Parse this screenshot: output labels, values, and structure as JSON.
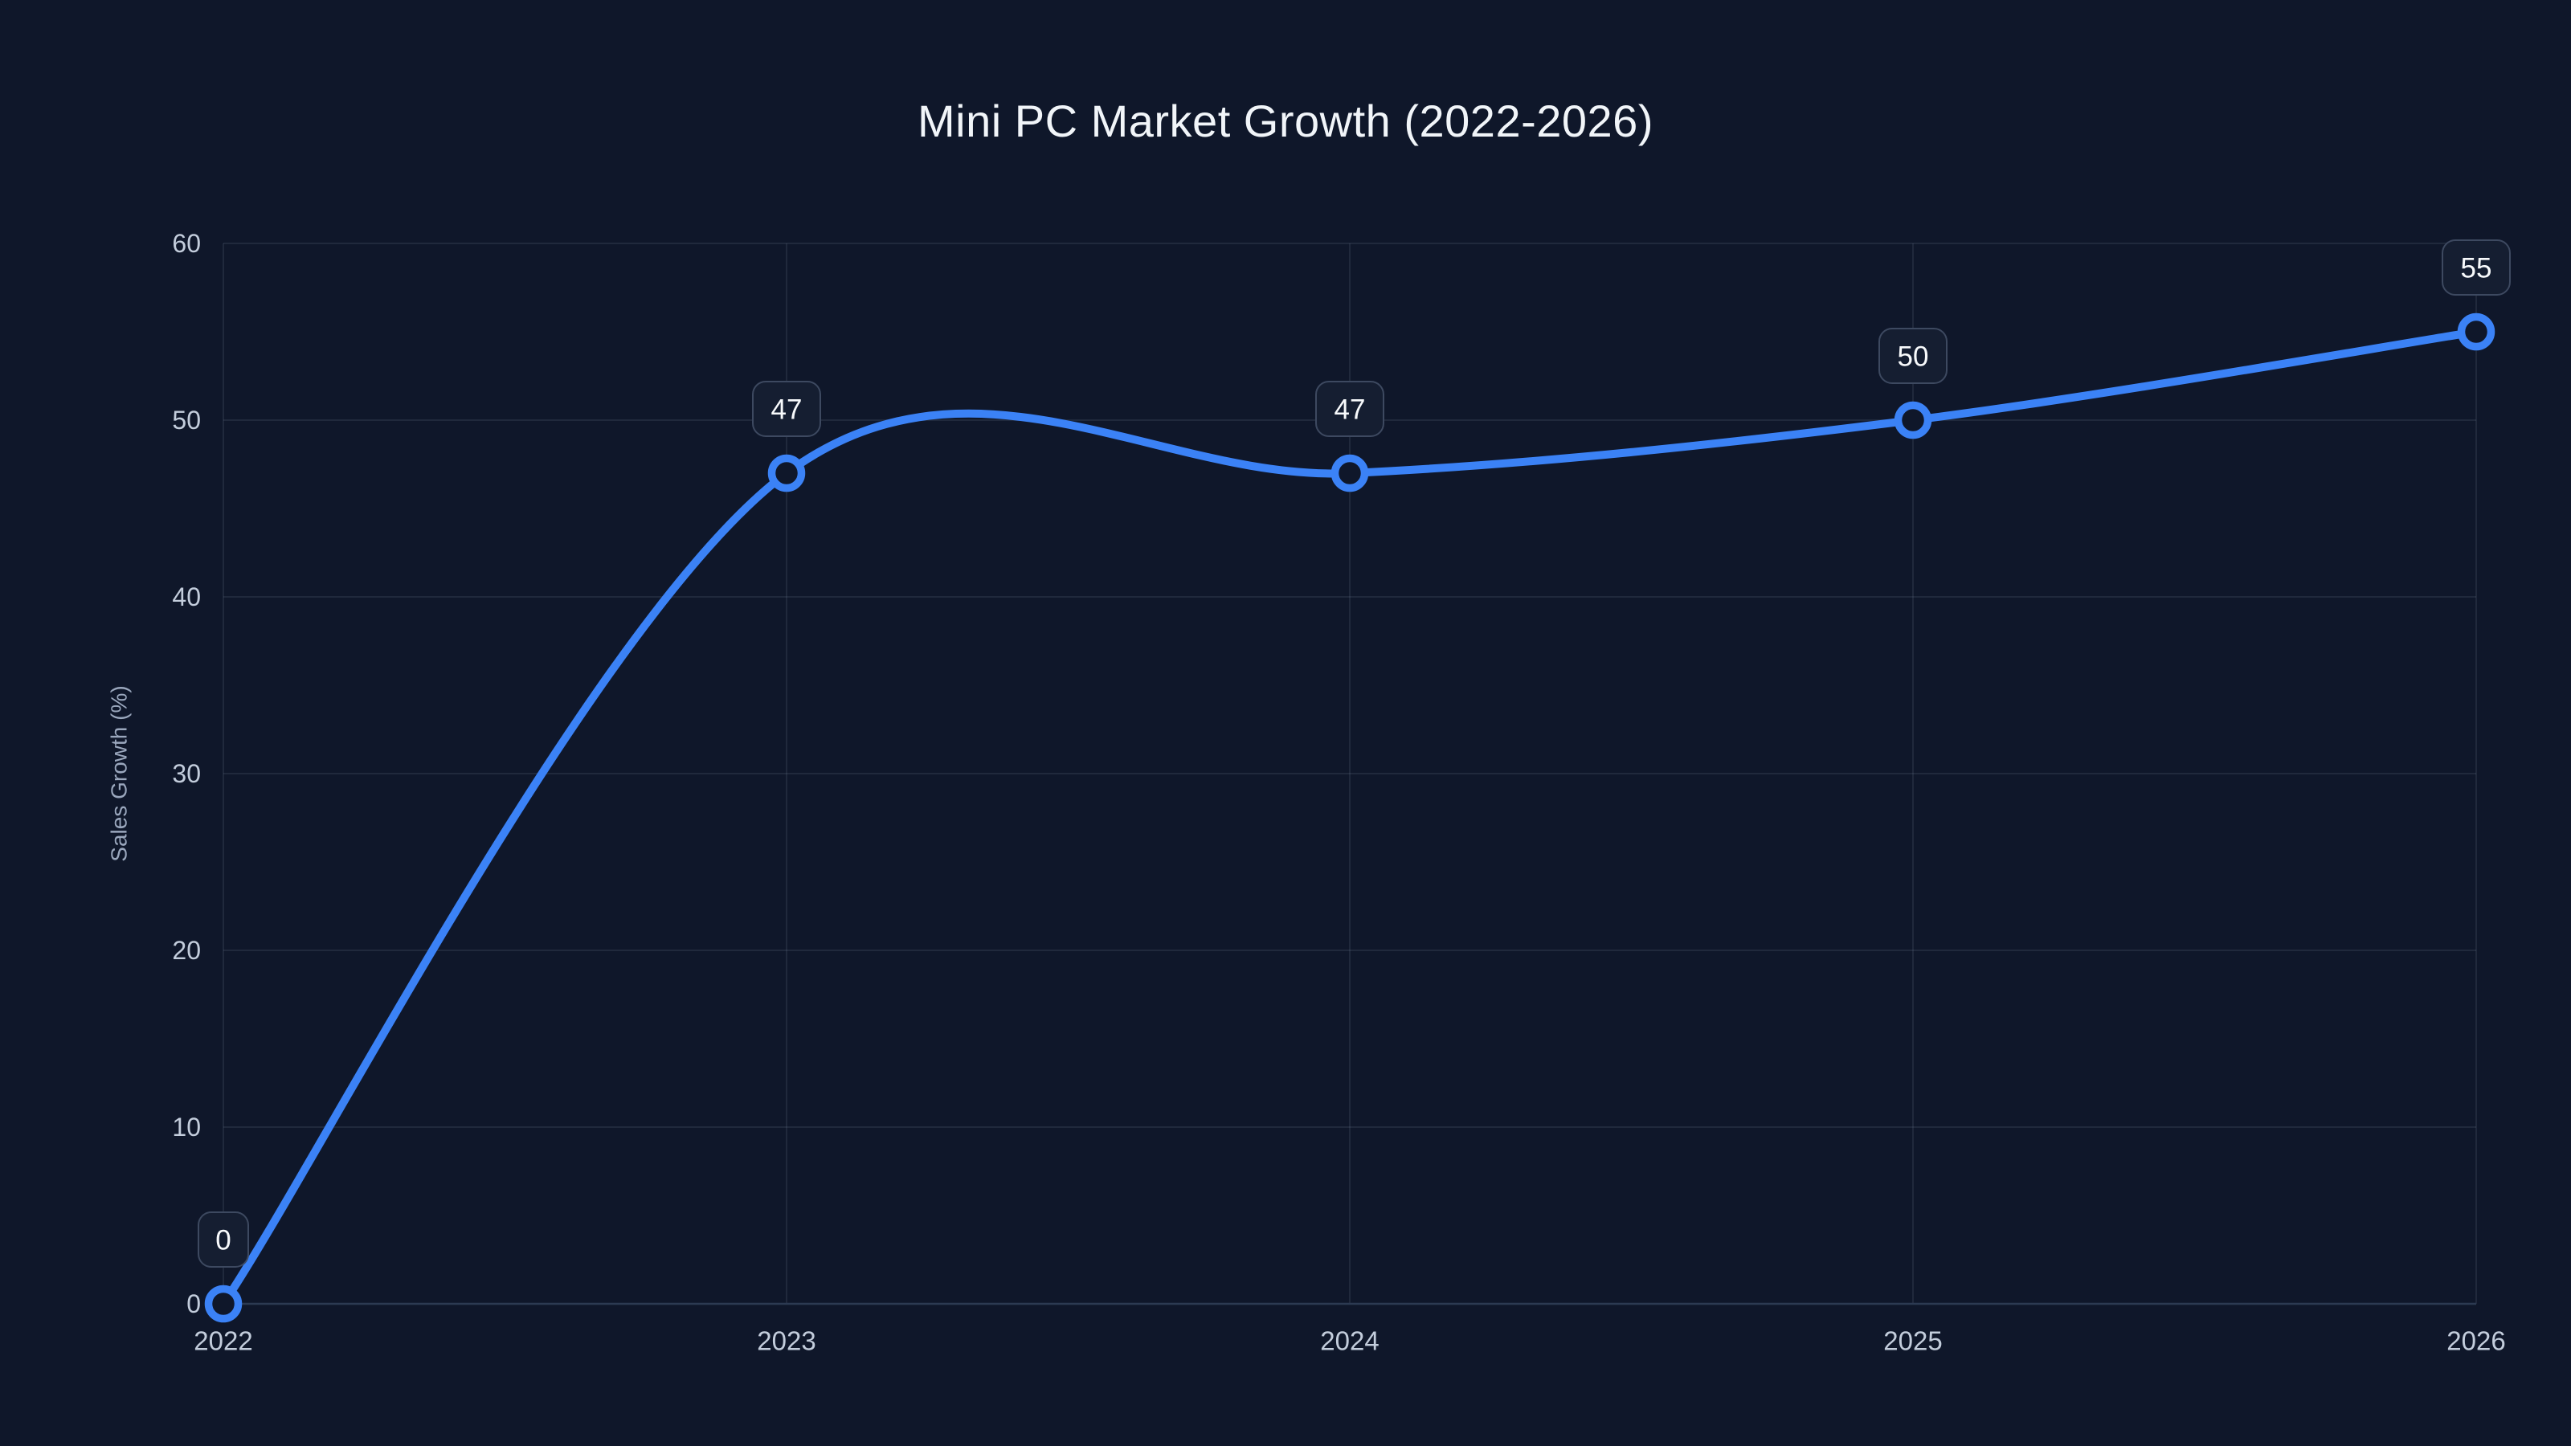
{
  "chart_data": {
    "type": "line",
    "title": "Mini PC Market Growth (2022-2026)",
    "categories": [
      "2022",
      "2023",
      "2024",
      "2025",
      "2026"
    ],
    "series": [
      {
        "name": "Sales Growth",
        "values": [
          0,
          47,
          47,
          50,
          55
        ]
      }
    ],
    "point_labels": [
      "0",
      "47",
      "47",
      "50",
      "55"
    ],
    "xlabel": "",
    "ylabel": "Sales Growth (%)",
    "ylim": [
      0,
      60
    ],
    "y_ticks": [
      0,
      10,
      20,
      30,
      40,
      50,
      60
    ],
    "grid": true,
    "legend": "none",
    "smooth": true
  },
  "colors": {
    "background": "#0f172a",
    "line": "#3b82f6",
    "marker_stroke": "#3b82f6",
    "marker_fill": "#0f172a",
    "grid": "rgba(148,163,184,0.13)",
    "axis_line": "#2c3a52",
    "tick_label": "#c3cddc",
    "axis_title": "#9aa7bd",
    "title": "#f1f5f9",
    "badge_border": "#3d4960",
    "badge_fill": "#151e31",
    "badge_text": "#f8fafc"
  }
}
